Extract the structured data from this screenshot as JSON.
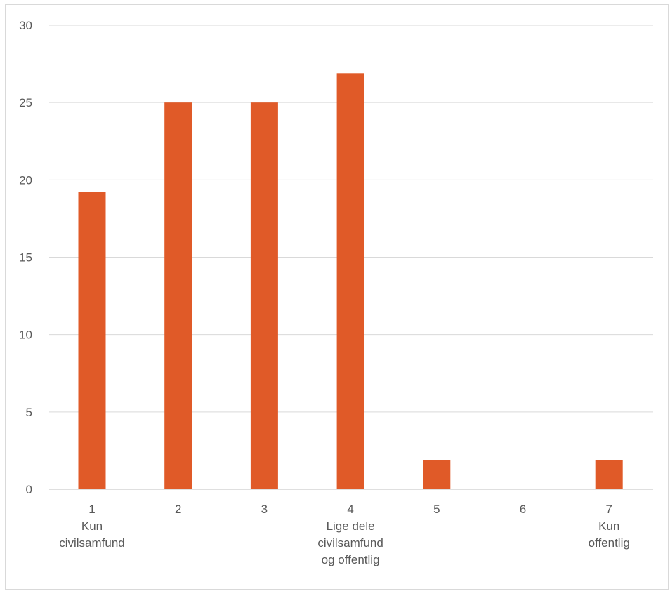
{
  "chart_data": {
    "type": "bar",
    "title": "",
    "xlabel": "",
    "ylabel": "",
    "ylim": [
      0,
      30
    ],
    "yticks": [
      0,
      5,
      10,
      15,
      20,
      25,
      30
    ],
    "grid": true,
    "legend": "none",
    "bar_color": "#e05a28",
    "categories": [
      [
        "1",
        "Kun",
        "civilsamfund"
      ],
      [
        "2"
      ],
      [
        "3"
      ],
      [
        "4",
        "Lige dele",
        "civilsamfund",
        "og offentlig"
      ],
      [
        "5"
      ],
      [
        "6"
      ],
      [
        "7",
        "Kun",
        "offentlig"
      ]
    ],
    "values": [
      19.2,
      25,
      25,
      26.9,
      1.9,
      0,
      1.9
    ]
  }
}
